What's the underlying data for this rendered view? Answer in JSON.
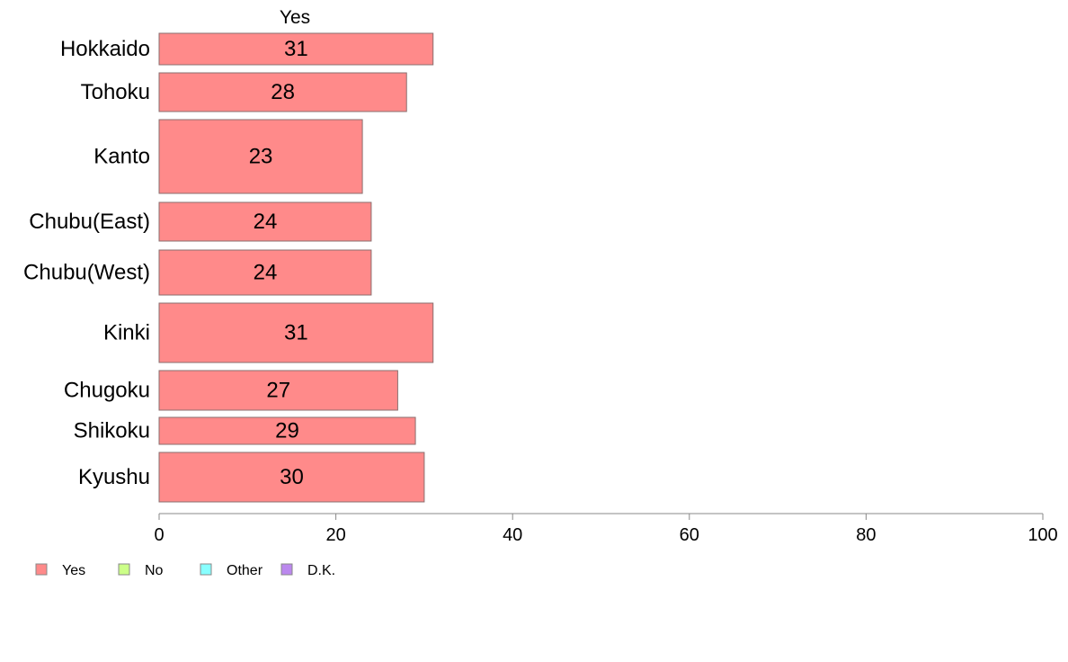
{
  "chart_data": {
    "type": "bar",
    "orientation": "horizontal",
    "categories": [
      "Hokkaido",
      "Tohoku",
      "Kanto",
      "Chubu(East)",
      "Chubu(West)",
      "Kinki",
      "Chugoku",
      "Shikoku",
      "Kyushu"
    ],
    "series_header": "Yes",
    "series": [
      {
        "name": "Yes",
        "color": "#ff8a8a",
        "values": [
          31,
          28,
          23,
          24,
          24,
          31,
          27,
          29,
          30
        ]
      }
    ],
    "xlim": [
      0,
      100
    ],
    "xticks": [
      0,
      20,
      40,
      60,
      80,
      100
    ],
    "legend": {
      "position": "bottom-left",
      "items": [
        {
          "label": "Yes",
          "color": "#ff8a8a"
        },
        {
          "label": "No",
          "color": "#ccff88"
        },
        {
          "label": "Other",
          "color": "#88ffff"
        },
        {
          "label": "D.K.",
          "color": "#bb88ee"
        }
      ]
    },
    "grid": false
  }
}
